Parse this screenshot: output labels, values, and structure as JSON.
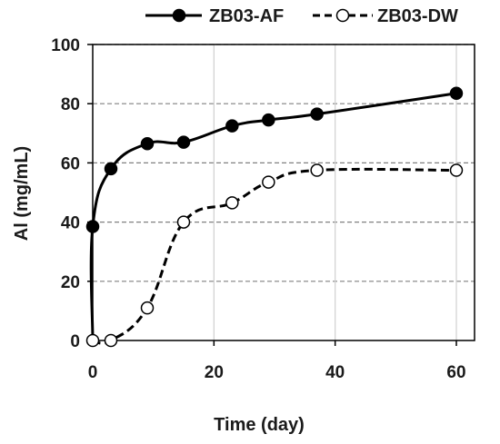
{
  "chart_data": {
    "type": "line",
    "title": "",
    "xlabel": "Time (day)",
    "ylabel": "Al (mg/mL)",
    "xlim": [
      0,
      63
    ],
    "ylim": [
      0,
      100
    ],
    "xticks": [
      0,
      20,
      40,
      60
    ],
    "yticks": [
      0,
      20,
      40,
      60,
      80,
      100
    ],
    "grid": "horizontal dashed at 20-unit steps; vertical solid light at 20, 40, 60",
    "legend_position": "top",
    "series": [
      {
        "name": "ZB03-AF",
        "line_style": "solid",
        "marker": "filled-circle",
        "color": "#000000",
        "x": [
          0,
          0,
          3,
          9,
          15,
          23,
          29,
          37,
          60
        ],
        "y": [
          0,
          38.5,
          58,
          66.5,
          67,
          72.5,
          74.5,
          76.5,
          83.5
        ]
      },
      {
        "name": "ZB03-DW",
        "line_style": "dashed",
        "marker": "open-circle",
        "color": "#000000",
        "x": [
          0,
          3,
          9,
          15,
          23,
          29,
          37,
          60
        ],
        "y": [
          0,
          0,
          11,
          40,
          46.5,
          53.5,
          57.5,
          57.5
        ]
      }
    ]
  }
}
